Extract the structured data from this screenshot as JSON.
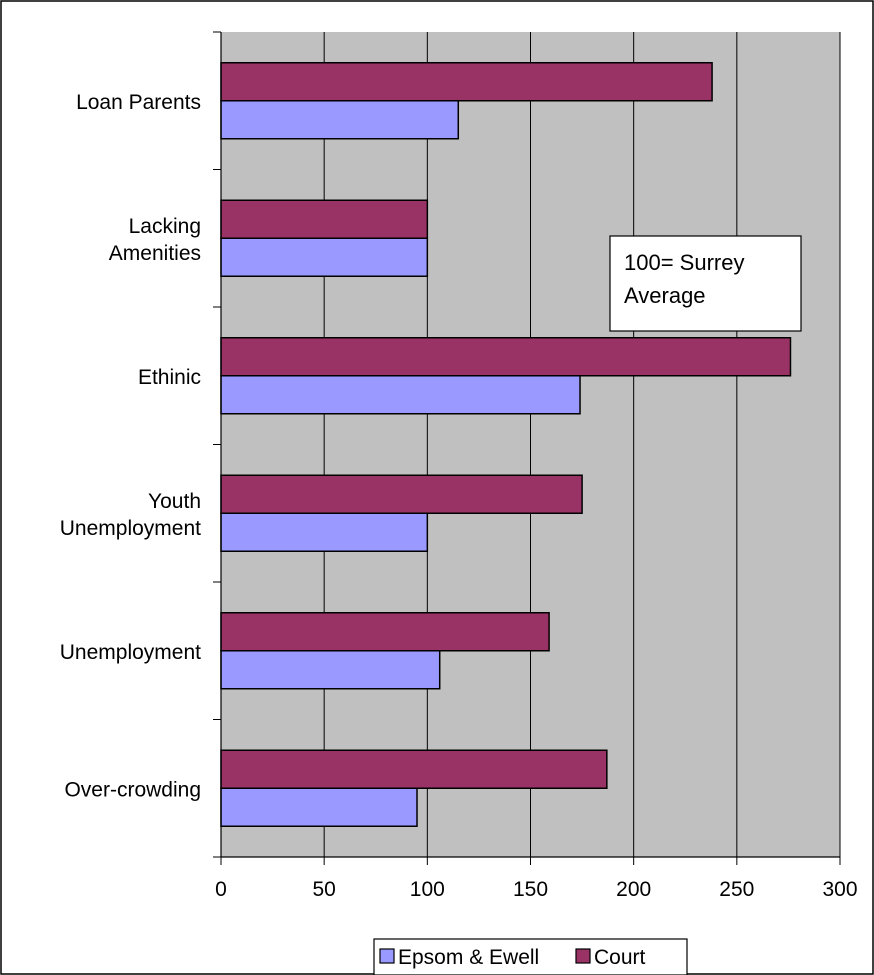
{
  "chart_data": {
    "type": "bar",
    "orientation": "horizontal",
    "categories": [
      [
        "Loan Parents"
      ],
      [
        "Lacking",
        "Amenities"
      ],
      [
        "Ethinic"
      ],
      [
        "Youth",
        "Unemployment"
      ],
      [
        "Unemployment"
      ],
      [
        "Over-crowding"
      ]
    ],
    "series": [
      {
        "name": "Court",
        "color": "#993366",
        "values": [
          238,
          100,
          276,
          175,
          159,
          187
        ]
      },
      {
        "name": "Epsom & Ewell",
        "color": "#9999ff",
        "values": [
          115,
          100,
          174,
          100,
          106,
          95
        ]
      }
    ],
    "xlim": [
      0,
      300
    ],
    "xticks": [
      0,
      50,
      100,
      150,
      200,
      250,
      300
    ],
    "grid": true,
    "plot_background": "#c0c0c0",
    "annotation": [
      "100= Surrey",
      "Average"
    ],
    "legend": {
      "position": "bottom",
      "entries": [
        {
          "name": "Epsom & Ewell",
          "color": "#9999ff"
        },
        {
          "name": "Court",
          "color": "#993366"
        }
      ]
    }
  }
}
